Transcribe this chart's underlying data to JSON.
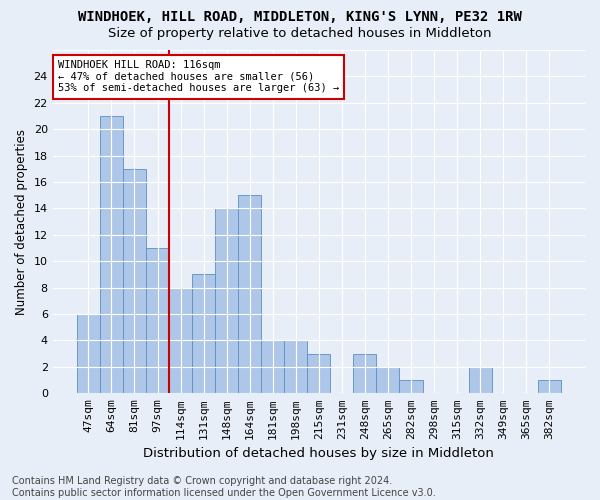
{
  "title": "WINDHOEK, HILL ROAD, MIDDLETON, KING'S LYNN, PE32 1RW",
  "subtitle": "Size of property relative to detached houses in Middleton",
  "xlabel": "Distribution of detached houses by size in Middleton",
  "ylabel": "Number of detached properties",
  "categories": [
    "47sqm",
    "64sqm",
    "81sqm",
    "97sqm",
    "114sqm",
    "131sqm",
    "148sqm",
    "164sqm",
    "181sqm",
    "198sqm",
    "215sqm",
    "231sqm",
    "248sqm",
    "265sqm",
    "282sqm",
    "298sqm",
    "315sqm",
    "332sqm",
    "349sqm",
    "365sqm",
    "382sqm"
  ],
  "values": [
    6,
    21,
    17,
    11,
    8,
    9,
    14,
    15,
    4,
    4,
    3,
    0,
    3,
    2,
    1,
    0,
    0,
    2,
    0,
    0,
    1
  ],
  "bar_color": "#aec6e8",
  "bar_edge_color": "#5a8fc2",
  "vline_color": "#cc0000",
  "vline_index": 4,
  "annotation_line1": "WINDHOEK HILL ROAD: 116sqm",
  "annotation_line2": "← 47% of detached houses are smaller (56)",
  "annotation_line3": "53% of semi-detached houses are larger (63) →",
  "annotation_box_color": "#ffffff",
  "annotation_box_edge_color": "#cc0000",
  "ylim": [
    0,
    26
  ],
  "yticks": [
    0,
    2,
    4,
    6,
    8,
    10,
    12,
    14,
    16,
    18,
    20,
    22,
    24,
    26
  ],
  "footer": "Contains HM Land Registry data © Crown copyright and database right 2024.\nContains public sector information licensed under the Open Government Licence v3.0.",
  "background_color": "#e8eef7",
  "grid_color": "#ffffff",
  "title_fontsize": 10,
  "subtitle_fontsize": 9.5,
  "xlabel_fontsize": 9.5,
  "ylabel_fontsize": 8.5,
  "tick_fontsize": 8,
  "annot_fontsize": 7.5,
  "footer_fontsize": 7
}
